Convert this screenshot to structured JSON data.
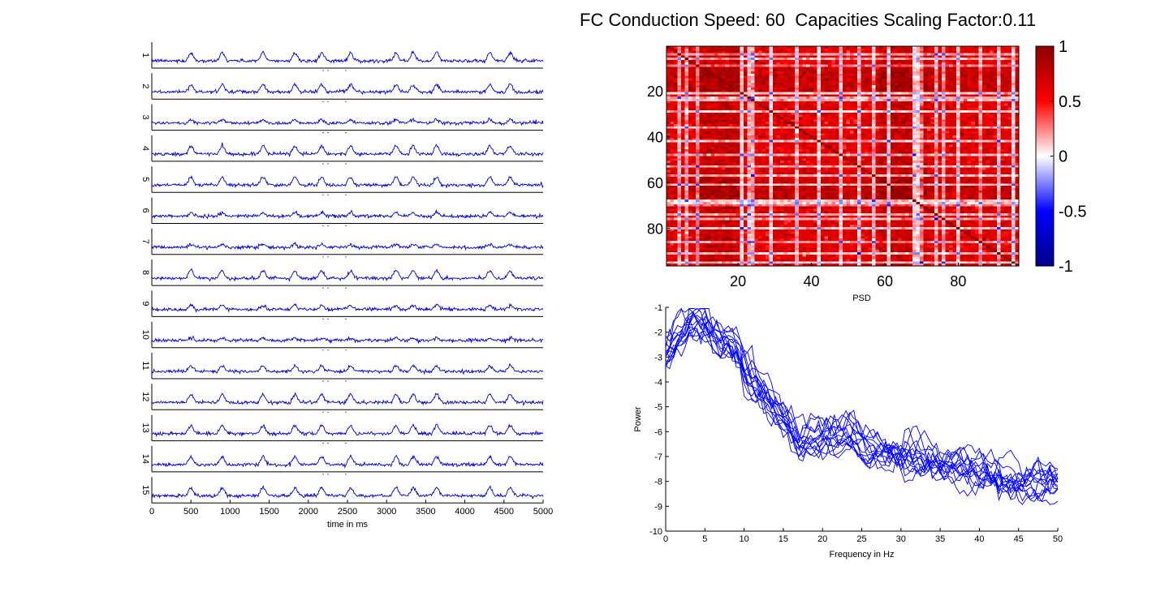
{
  "figure": {
    "title": "FC Conduction Speed: 60  Capacities Scaling Factor:0.11"
  },
  "chart_data": [
    {
      "type": "line",
      "panel": "time-series",
      "xlabel": "time in ms",
      "ylabel": "",
      "xlim": [
        0,
        5000
      ],
      "x_ticks": [
        0,
        500,
        1000,
        1500,
        2000,
        2500,
        3000,
        3500,
        4000,
        4500,
        5000
      ],
      "channels": [
        "1",
        "2",
        "3",
        "4",
        "5",
        "6",
        "7",
        "8",
        "9",
        "10",
        "11",
        "12",
        "13",
        "14",
        "15"
      ],
      "peak_times_ms": [
        480,
        880,
        1400,
        1810,
        2150,
        2520,
        3100,
        3320,
        3620,
        4300,
        4560
      ],
      "line_color": "#0000cc"
    },
    {
      "type": "heatmap",
      "panel": "fc-matrix",
      "xlabel": "",
      "ylabel": "",
      "size": 96,
      "x_ticks": [
        20,
        40,
        60,
        80
      ],
      "y_ticks": [
        20,
        40,
        60,
        80
      ],
      "clim": [
        -1,
        1
      ],
      "colorbar_ticks": [
        "1",
        "0.5",
        "0",
        "-0.5",
        "-1"
      ],
      "colormap": [
        "#00008b",
        "#0000ff",
        "#ffffff",
        "#ff0000",
        "#8b0000"
      ]
    },
    {
      "type": "line",
      "panel": "psd",
      "title": "PSD",
      "xlabel": "Frequency in Hz",
      "ylabel": "Power",
      "xlim": [
        0,
        50
      ],
      "ylim": [
        -10,
        -1
      ],
      "x_ticks": [
        0,
        5,
        10,
        15,
        20,
        25,
        30,
        35,
        40,
        45,
        50
      ],
      "y_ticks": [
        -1,
        -2,
        -3,
        -4,
        -5,
        -6,
        -7,
        -8,
        -9,
        -10
      ],
      "mean_curve": {
        "x": [
          0,
          1,
          2,
          3,
          4,
          5,
          6,
          7,
          8,
          9,
          10,
          11,
          12,
          13,
          14,
          15,
          16,
          17,
          18,
          20,
          22,
          24,
          25,
          26,
          28,
          30,
          32,
          35,
          38,
          40,
          42,
          45,
          48,
          50
        ],
        "y": [
          -2.8,
          -2.3,
          -1.9,
          -1.6,
          -1.5,
          -1.6,
          -2.0,
          -2.3,
          -2.2,
          -2.5,
          -3.3,
          -3.9,
          -4.3,
          -4.6,
          -5.0,
          -5.4,
          -5.8,
          -6.3,
          -6.1,
          -6.2,
          -6.1,
          -5.9,
          -6.5,
          -6.7,
          -6.8,
          -6.9,
          -7.0,
          -7.2,
          -7.3,
          -7.5,
          -7.6,
          -7.8,
          -7.9,
          -7.9
        ]
      },
      "series_count": 15,
      "line_color": "#0000ff"
    }
  ]
}
